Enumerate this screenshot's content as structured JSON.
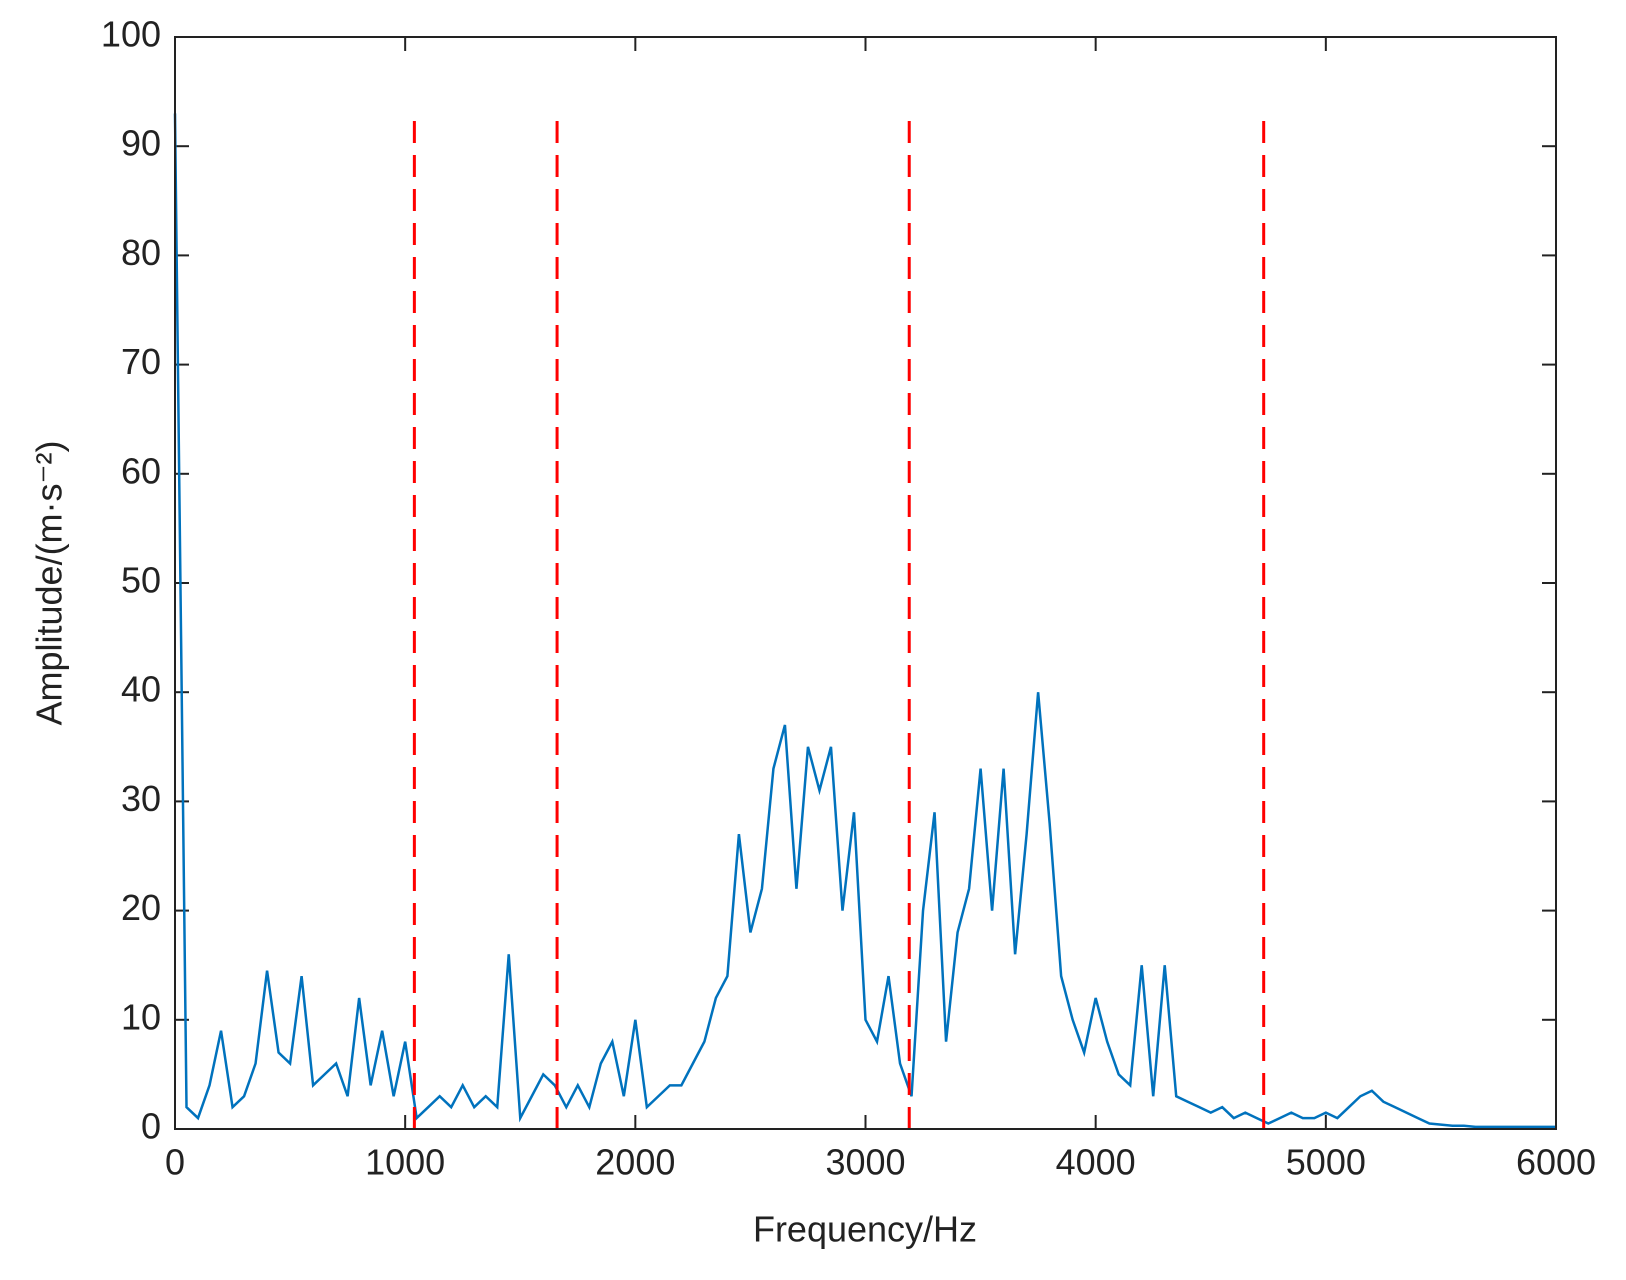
{
  "chart_data": {
    "type": "line",
    "x_label": "Frequency/Hz",
    "y_label": "Amplitude/(m·s⁻²)",
    "xlim": [
      0,
      6000
    ],
    "xticks": [
      0,
      1000,
      2000,
      3000,
      4000,
      5000,
      6000
    ],
    "ylim": [
      0,
      100
    ],
    "yticks": [
      0,
      10,
      20,
      30,
      40,
      50,
      60,
      70,
      80,
      90,
      100
    ],
    "series": [
      {
        "color": "#0072bd",
        "x": [
          0,
          50,
          100,
          150,
          200,
          250,
          300,
          350,
          400,
          450,
          500,
          550,
          600,
          650,
          700,
          750,
          800,
          850,
          900,
          950,
          1000,
          1050,
          1100,
          1150,
          1200,
          1250,
          1300,
          1350,
          1400,
          1450,
          1500,
          1550,
          1600,
          1650,
          1700,
          1750,
          1800,
          1850,
          1900,
          1950,
          2000,
          2050,
          2100,
          2150,
          2200,
          2250,
          2300,
          2350,
          2400,
          2450,
          2500,
          2550,
          2600,
          2650,
          2700,
          2750,
          2800,
          2850,
          2900,
          2950,
          3000,
          3050,
          3100,
          3150,
          3200,
          3250,
          3300,
          3350,
          3400,
          3450,
          3500,
          3550,
          3600,
          3650,
          3700,
          3750,
          3800,
          3850,
          3900,
          3950,
          4000,
          4050,
          4100,
          4150,
          4200,
          4250,
          4300,
          4350,
          4400,
          4450,
          4500,
          4550,
          4600,
          4650,
          4700,
          4750,
          4800,
          4850,
          4900,
          4950,
          5000,
          5050,
          5100,
          5150,
          5200,
          5250,
          5300,
          5350,
          5400,
          5450,
          5500,
          5550,
          5600,
          5650,
          5700,
          5750,
          5800,
          5850,
          5900,
          5950,
          6000
        ],
        "values": [
          93,
          2,
          1,
          4,
          9,
          2,
          3,
          6,
          14.5,
          7,
          6,
          14,
          4,
          5,
          6,
          3,
          12,
          4,
          9,
          3,
          8,
          1,
          2,
          3,
          2,
          4,
          2,
          3,
          2,
          16,
          1,
          3,
          5,
          4,
          2,
          4,
          2,
          6,
          8,
          3,
          10,
          2,
          3,
          4,
          4,
          6,
          8,
          12,
          14,
          27,
          18,
          22,
          33,
          37,
          22,
          35,
          31,
          35,
          20,
          29,
          10,
          8,
          14,
          6,
          3,
          20,
          29,
          8,
          18,
          22,
          33,
          20,
          33,
          16,
          27,
          40,
          28,
          14,
          10,
          7,
          12,
          8,
          5,
          4,
          15,
          3,
          15,
          3,
          2.5,
          2,
          1.5,
          2,
          1,
          1.5,
          1,
          0.5,
          1,
          1.5,
          1,
          1,
          1.5,
          1,
          2,
          3,
          3.5,
          2.5,
          2,
          1.5,
          1,
          0.5,
          0.4,
          0.3,
          0.3,
          0.2,
          0.2,
          0.2,
          0.2,
          0.2,
          0.2,
          0.2,
          0.2
        ]
      }
    ],
    "vlines": [
      1040,
      1660,
      3190,
      4730
    ],
    "vline_top": 93,
    "vline_color": "#ff0000"
  }
}
